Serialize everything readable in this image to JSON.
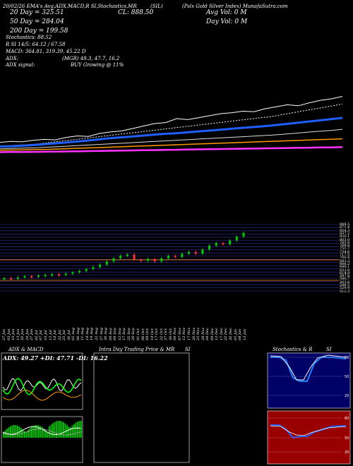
{
  "header": {
    "top_line": "20/02/26 EMA's Avg,ADX,MACD,R SI,Stochastics,MR",
    "symbol_tag": "(SIL)",
    "close_label": "CL: 888.50",
    "company": "(Pslx Gold Silver Index) MunafaSutra.com",
    "avg_vol": "Avg Vol: 0 M",
    "day_vol": "Day Vol: 0 M"
  },
  "indicators": {
    "ema20": "20 Day = 325.51",
    "ema50": "50 Day = 284.04",
    "ema200": "200 Day = 199.58",
    "stochastics": "Stochastics: 88.52",
    "rsi": "R SI 14/5: 64.12 / 67.58",
    "macd": "MACD: 364.81, 319.39, 45.22 D",
    "adx_label": "ADX:",
    "adx_values": "(MGR) 49.3, 47.7, 16.2",
    "adx_signal_label": "ADX signal:",
    "adx_signal_value": "BUY Growing @ 11%"
  },
  "date_labels": [
    "27 Jan",
    "03 Jun",
    "10 Jun",
    "13 Jun",
    "20 Jun",
    "24 Jun",
    "27 Jun",
    "02 Jul",
    "07 Jul",
    "10 Jul",
    "15 Jul",
    "18 Jul",
    "22 Jul",
    "25 Jul",
    "30 Jul",
    "02 Aug",
    "06 Aug",
    "11 Aug",
    "14 Aug",
    "19 Aug",
    "22 Aug",
    "27 Aug",
    "30 Aug",
    "04 Sep",
    "09 Sep",
    "12 Sep",
    "17 Sep",
    "22 Sep",
    "26 Sep",
    "01 Oct",
    "06 Oct",
    "09 Oct",
    "14 Oct",
    "17 Oct",
    "22 Oct",
    "27 Oct",
    "30 Oct",
    "04 Nov",
    "07 Nov",
    "12 Nov",
    "17 Nov",
    "20 Nov",
    "25 Nov",
    "28 Nov",
    "04 Dec",
    "09 Dec",
    "12 Dec",
    "17 Dec",
    "22 Dec",
    "30 Dec",
    "05 Jan",
    "08 Jan",
    "13 Jan"
  ],
  "price_levels": [
    "888.5",
    "871.4",
    "854.3",
    "837.2",
    "820.1",
    "803.0",
    "785.9",
    "768.8",
    "751.7",
    "734.6",
    "717.5",
    "700.4",
    "683.3",
    "666.2",
    "649.1",
    "632.0",
    "614.9",
    "597.8",
    "580.7",
    "563.6",
    "546.5",
    "529.4",
    "512.3"
  ],
  "panels": {
    "adx_macd": {
      "title": "ADX & MACD",
      "readout": "ADX: 49.27 +DI: 47.71 -DI: 16.22"
    },
    "intraday": {
      "title": "Intra Day Trading Price & MR"
    },
    "si": {
      "title": "SI"
    },
    "stoch": {
      "title": "Stochastics & R"
    },
    "si2": {
      "title": "SI"
    },
    "stoch_ticks": [
      "88",
      "50",
      "20"
    ],
    "rsi_ticks": [
      "80",
      "50",
      "20"
    ],
    "stoch_readout": "88",
    "rsi_readout": "64"
  },
  "colors": {
    "ema20": "#1f5fff",
    "ema50": "#ffffff",
    "ema200": "#ff9900",
    "ema_long": "#ff33ff",
    "up_candle": "#00cc00",
    "down_candle": "#ff3333",
    "stoch_bg": "#000066",
    "rsi_bg": "#990000"
  },
  "chart_data": {
    "type": "line",
    "title": "",
    "series": [
      {
        "name": "20 Day",
        "values": [
          0.1,
          0.11,
          0.13,
          0.15,
          0.18,
          0.21,
          0.24,
          0.27,
          0.31,
          0.35,
          0.38,
          0.41,
          0.44,
          0.47,
          0.5,
          0.52,
          0.55,
          0.58,
          0.61,
          0.64,
          0.67,
          0.7,
          0.73,
          0.76,
          0.8,
          0.84,
          0.88,
          0.92,
          0.96,
          1.0
        ]
      },
      {
        "name": "50 Day",
        "values": [
          0.05,
          0.06,
          0.07,
          0.08,
          0.1,
          0.12,
          0.14,
          0.16,
          0.18,
          0.2,
          0.22,
          0.24,
          0.26,
          0.28,
          0.3,
          0.32,
          0.34,
          0.36,
          0.38,
          0.4,
          0.42,
          0.44,
          0.46,
          0.48,
          0.51,
          0.54,
          0.57,
          0.6,
          0.63,
          0.66
        ]
      },
      {
        "name": "200 Day",
        "values": [
          0.02,
          0.025,
          0.03,
          0.035,
          0.04,
          0.05,
          0.06,
          0.07,
          0.08,
          0.09,
          0.1,
          0.11,
          0.12,
          0.13,
          0.14,
          0.15,
          0.16,
          0.17,
          0.18,
          0.19,
          0.2,
          0.21,
          0.22,
          0.23,
          0.24,
          0.25,
          0.26,
          0.27,
          0.28,
          0.29
        ]
      }
    ],
    "candles": [
      {
        "o": 0.05,
        "c": 0.07
      },
      {
        "o": 0.07,
        "c": 0.06
      },
      {
        "o": 0.06,
        "c": 0.08
      },
      {
        "o": 0.08,
        "c": 0.1
      },
      {
        "o": 0.1,
        "c": 0.09
      },
      {
        "o": 0.09,
        "c": 0.11
      },
      {
        "o": 0.11,
        "c": 0.12
      },
      {
        "o": 0.12,
        "c": 0.13
      },
      {
        "o": 0.13,
        "c": 0.12
      },
      {
        "o": 0.12,
        "c": 0.14
      },
      {
        "o": 0.14,
        "c": 0.16
      },
      {
        "o": 0.16,
        "c": 0.18
      },
      {
        "o": 0.18,
        "c": 0.21
      },
      {
        "o": 0.21,
        "c": 0.24
      },
      {
        "o": 0.24,
        "c": 0.28
      },
      {
        "o": 0.28,
        "c": 0.33
      },
      {
        "o": 0.33,
        "c": 0.38
      },
      {
        "o": 0.38,
        "c": 0.42
      },
      {
        "o": 0.42,
        "c": 0.44
      },
      {
        "o": 0.44,
        "c": 0.36
      },
      {
        "o": 0.36,
        "c": 0.34
      },
      {
        "o": 0.34,
        "c": 0.37
      },
      {
        "o": 0.37,
        "c": 0.33
      },
      {
        "o": 0.33,
        "c": 0.38
      },
      {
        "o": 0.38,
        "c": 0.42
      },
      {
        "o": 0.42,
        "c": 0.4
      },
      {
        "o": 0.4,
        "c": 0.45
      },
      {
        "o": 0.45,
        "c": 0.48
      },
      {
        "o": 0.48,
        "c": 0.45
      },
      {
        "o": 0.45,
        "c": 0.52
      },
      {
        "o": 0.52,
        "c": 0.58
      },
      {
        "o": 0.58,
        "c": 0.62
      },
      {
        "o": 0.62,
        "c": 0.6
      },
      {
        "o": 0.6,
        "c": 0.66
      },
      {
        "o": 0.66,
        "c": 0.72
      },
      {
        "o": 0.72,
        "c": 0.78
      }
    ]
  }
}
